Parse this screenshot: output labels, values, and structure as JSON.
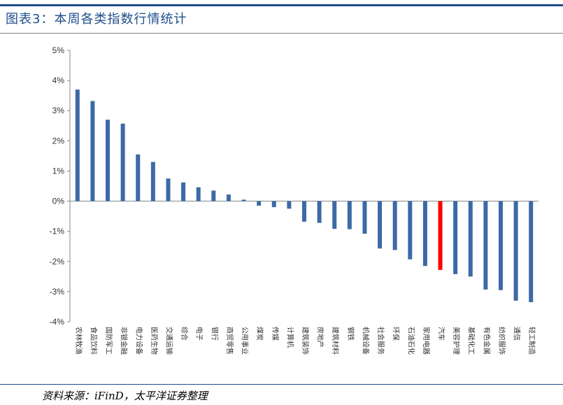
{
  "header": {
    "title": "图表3：本周各类指数行情统计"
  },
  "footer": {
    "source": "资料来源：iFinD，太平洋证券整理"
  },
  "colors": {
    "bar": "#3c6aa6",
    "highlight": "#ff0000",
    "accent": "#1f4e8c"
  },
  "chart_data": {
    "type": "bar",
    "title": "",
    "xlabel": "",
    "ylabel": "",
    "ylim": [
      -4,
      5
    ],
    "yticks": [
      5,
      4,
      3,
      2,
      1,
      0,
      -1,
      -2,
      -3,
      -4
    ],
    "ytick_labels": [
      "5%",
      "4%",
      "3%",
      "2%",
      "1%",
      "0%",
      "-1%",
      "-2%",
      "-3%",
      "-4%"
    ],
    "grid": false,
    "legend": "none",
    "highlight_category": "汽车",
    "categories": [
      "农林牧渔",
      "食品饮料",
      "国防军工",
      "非银金融",
      "电力设备",
      "医药生物",
      "交通运输",
      "综合",
      "电子",
      "银行",
      "商贸零售",
      "公用事业",
      "煤炭",
      "传媒",
      "计算机",
      "建筑装饰",
      "房地产",
      "建筑材料",
      "钢铁",
      "机械设备",
      "社会服务",
      "环保",
      "石油石化",
      "家用电器",
      "汽车",
      "美容护理",
      "基础化工",
      "有色金属",
      "纺织服饰",
      "通信",
      "轻工制造"
    ],
    "values": [
      3.7,
      3.32,
      2.7,
      2.57,
      1.55,
      1.3,
      0.75,
      0.62,
      0.46,
      0.35,
      0.22,
      0.05,
      -0.15,
      -0.2,
      -0.25,
      -0.68,
      -0.72,
      -0.92,
      -0.93,
      -1.08,
      -1.57,
      -1.62,
      -1.93,
      -2.15,
      -2.28,
      -2.42,
      -2.5,
      -2.93,
      -2.95,
      -3.3,
      -3.35
    ]
  }
}
